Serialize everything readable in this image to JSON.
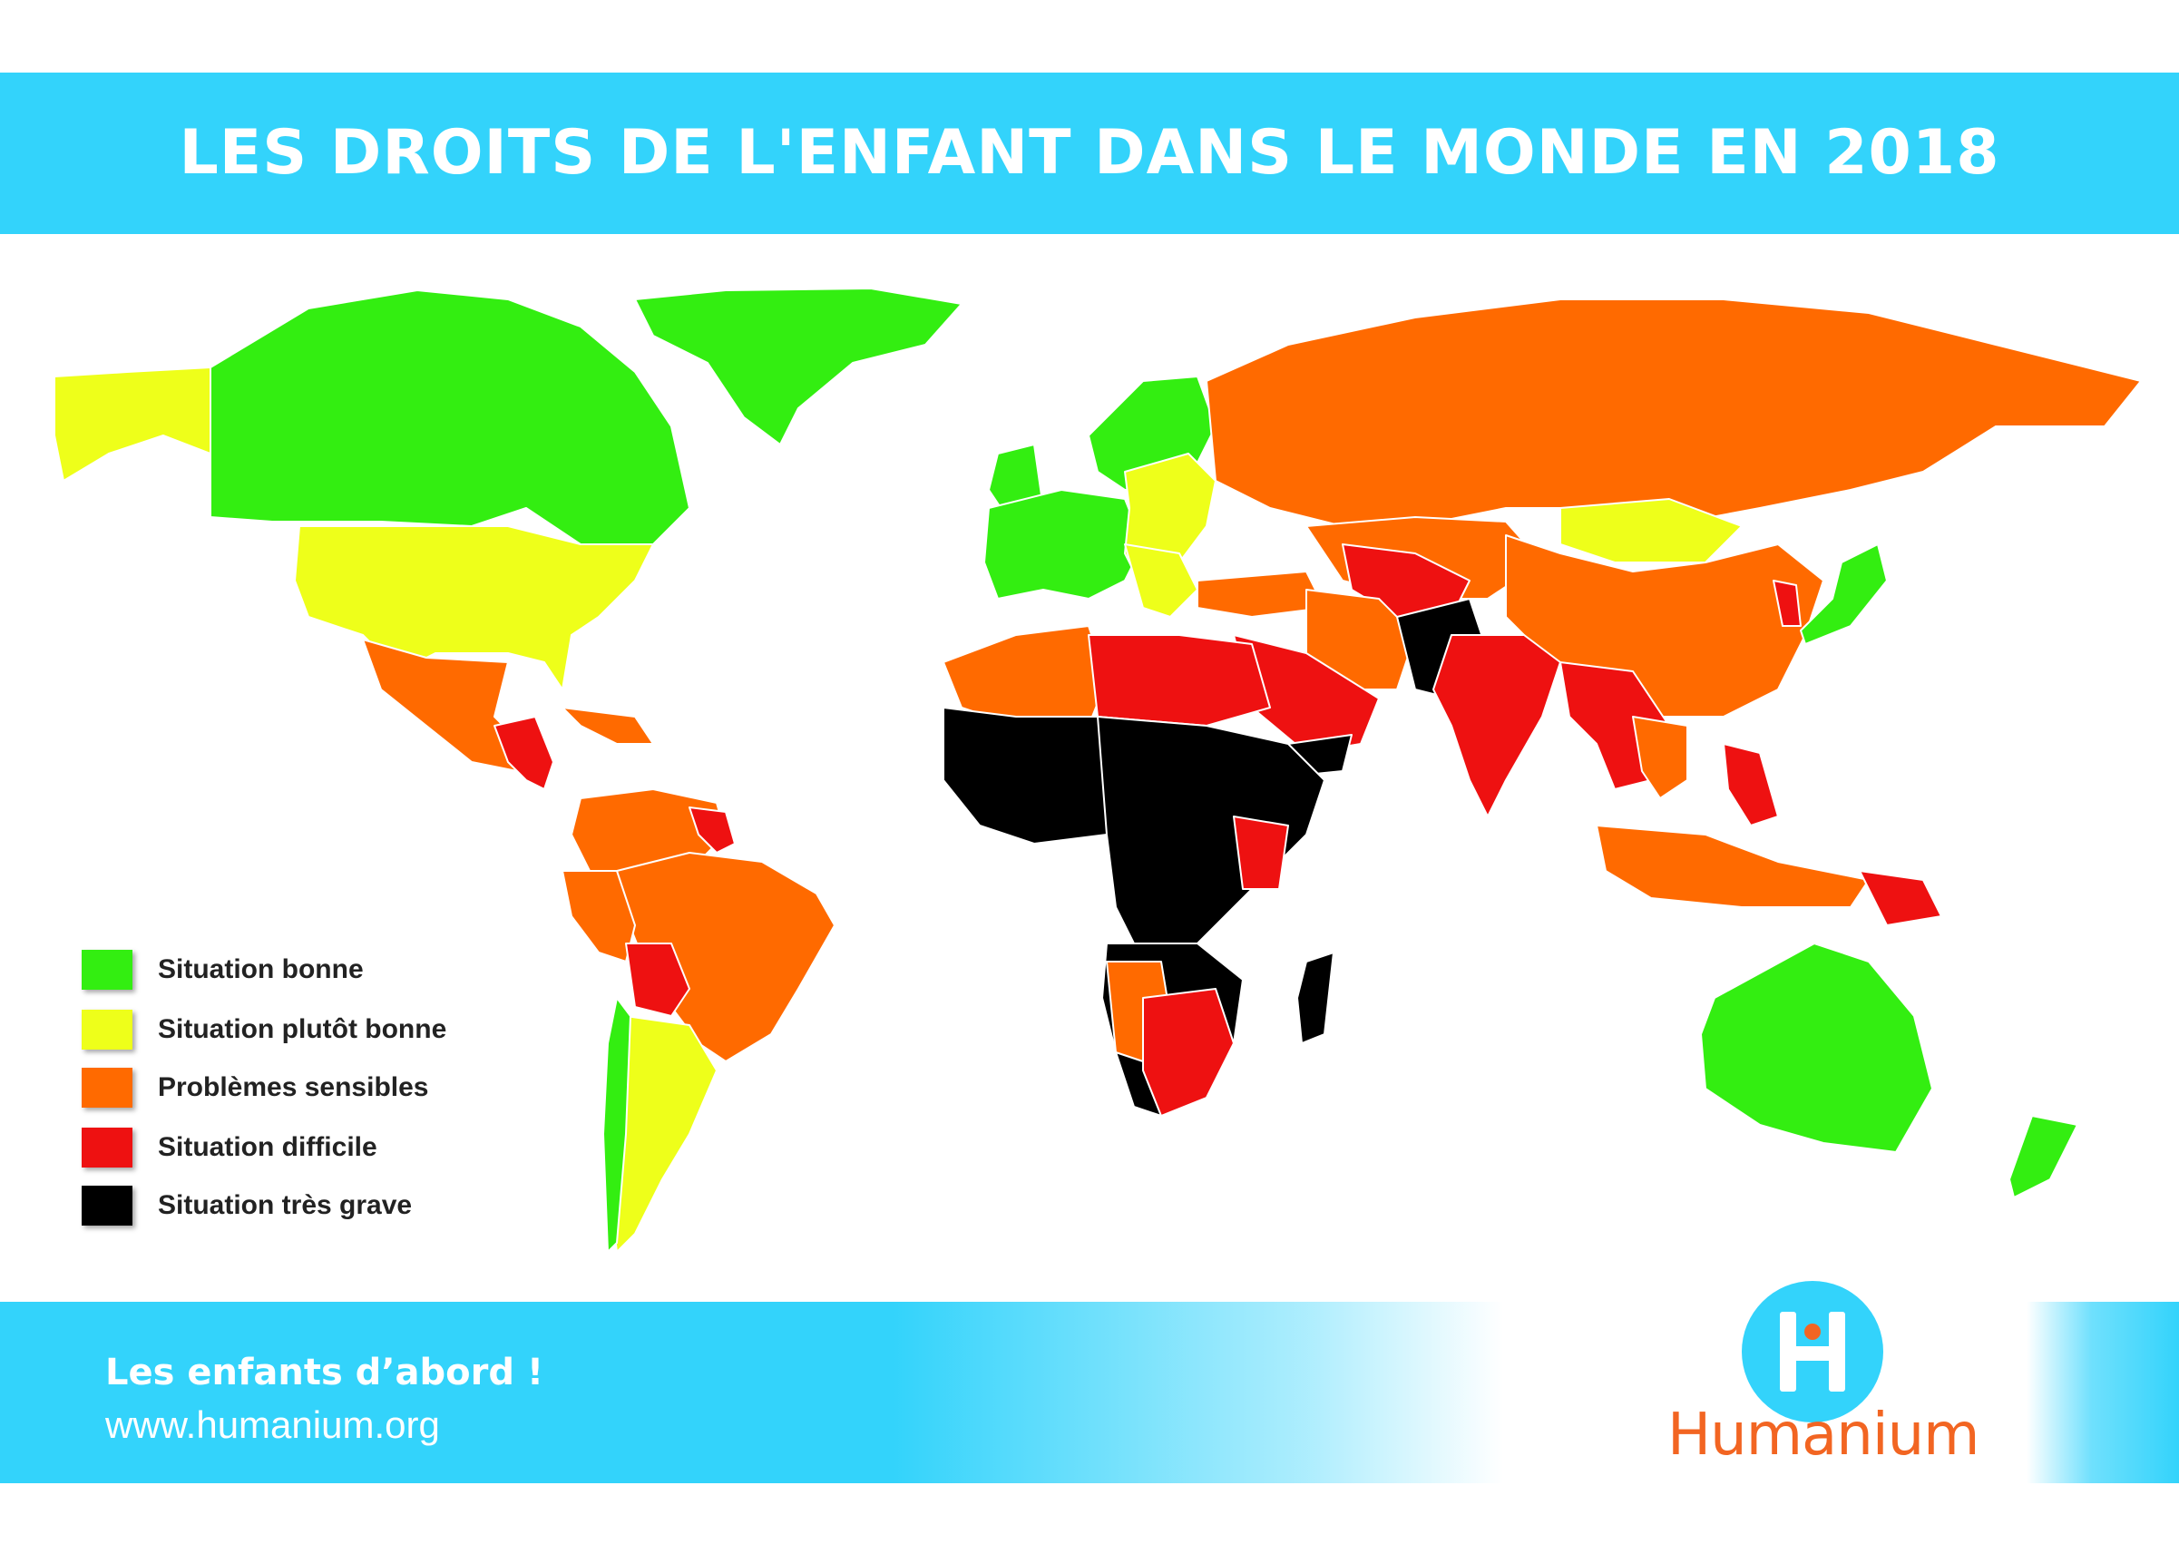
{
  "title": "LES DROITS DE L'ENFANT DANS LE MONDE EN 2018",
  "legend": [
    {
      "label": "Situation bonne",
      "color": "#33ee11"
    },
    {
      "label": "Situation plutôt bonne",
      "color": "#eeff1a"
    },
    {
      "label": "Problèmes sensibles",
      "color": "#ff6a00"
    },
    {
      "label": "Situation difficile",
      "color": "#ee1111"
    },
    {
      "label": "Situation très grave",
      "color": "#000000"
    }
  ],
  "footer": {
    "slogan": "Les enfants d’abord !",
    "url": "www.humanium.org"
  },
  "brand": {
    "name": "Humanium",
    "icon": "humanium-h-logo-icon"
  },
  "colors": {
    "banner": "#33d3fb",
    "brand": "#f26522"
  }
}
